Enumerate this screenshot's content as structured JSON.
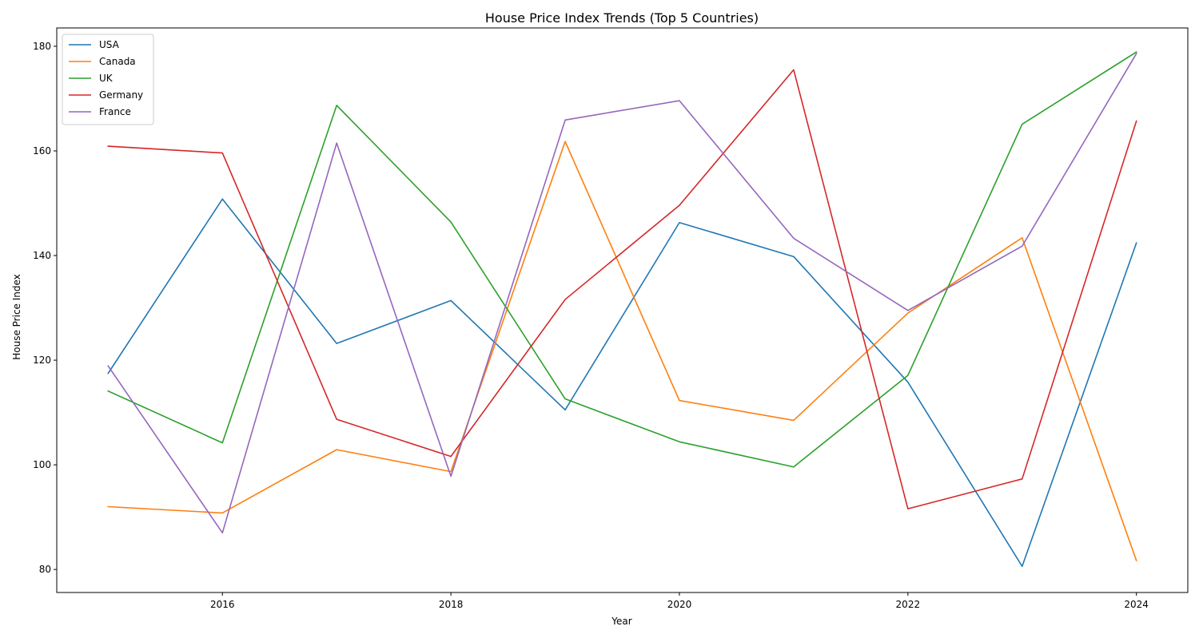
{
  "chart_data": {
    "type": "line",
    "title": "House Price Index Trends (Top 5 Countries)",
    "xlabel": "Year",
    "ylabel": "House Price Index",
    "x": [
      2015,
      2016,
      2017,
      2018,
      2019,
      2020,
      2021,
      2022,
      2023,
      2024
    ],
    "xlim": [
      2014.55,
      2024.45
    ],
    "ylim": [
      75.6,
      183.5
    ],
    "xticks": [
      "2016",
      "2018",
      "2020",
      "2022",
      "2024"
    ],
    "yticks": [
      "80",
      "100",
      "120",
      "140",
      "160",
      "180"
    ],
    "grid": false,
    "legend_position": "top-left",
    "series": [
      {
        "name": "USA",
        "color": "#1f77b4",
        "values": [
          117.5,
          150.8,
          123.2,
          131.4,
          110.5,
          146.3,
          139.8,
          115.8,
          80.6,
          142.4
        ]
      },
      {
        "name": "Canada",
        "color": "#ff7f0e",
        "values": [
          92.0,
          90.8,
          102.9,
          98.7,
          161.8,
          112.3,
          108.5,
          129.0,
          143.4,
          81.7
        ]
      },
      {
        "name": "UK",
        "color": "#2ca02c",
        "values": [
          114.1,
          104.2,
          168.7,
          146.4,
          112.6,
          104.4,
          99.6,
          117.1,
          165.1,
          178.9
        ]
      },
      {
        "name": "Germany",
        "color": "#d62728",
        "values": [
          160.9,
          159.6,
          108.7,
          101.6,
          131.6,
          149.6,
          175.5,
          91.6,
          97.3,
          165.7
        ]
      },
      {
        "name": "France",
        "color": "#9467bd",
        "values": [
          118.9,
          87.0,
          161.5,
          97.8,
          165.9,
          169.6,
          143.3,
          129.5,
          141.8,
          178.6
        ]
      }
    ]
  }
}
